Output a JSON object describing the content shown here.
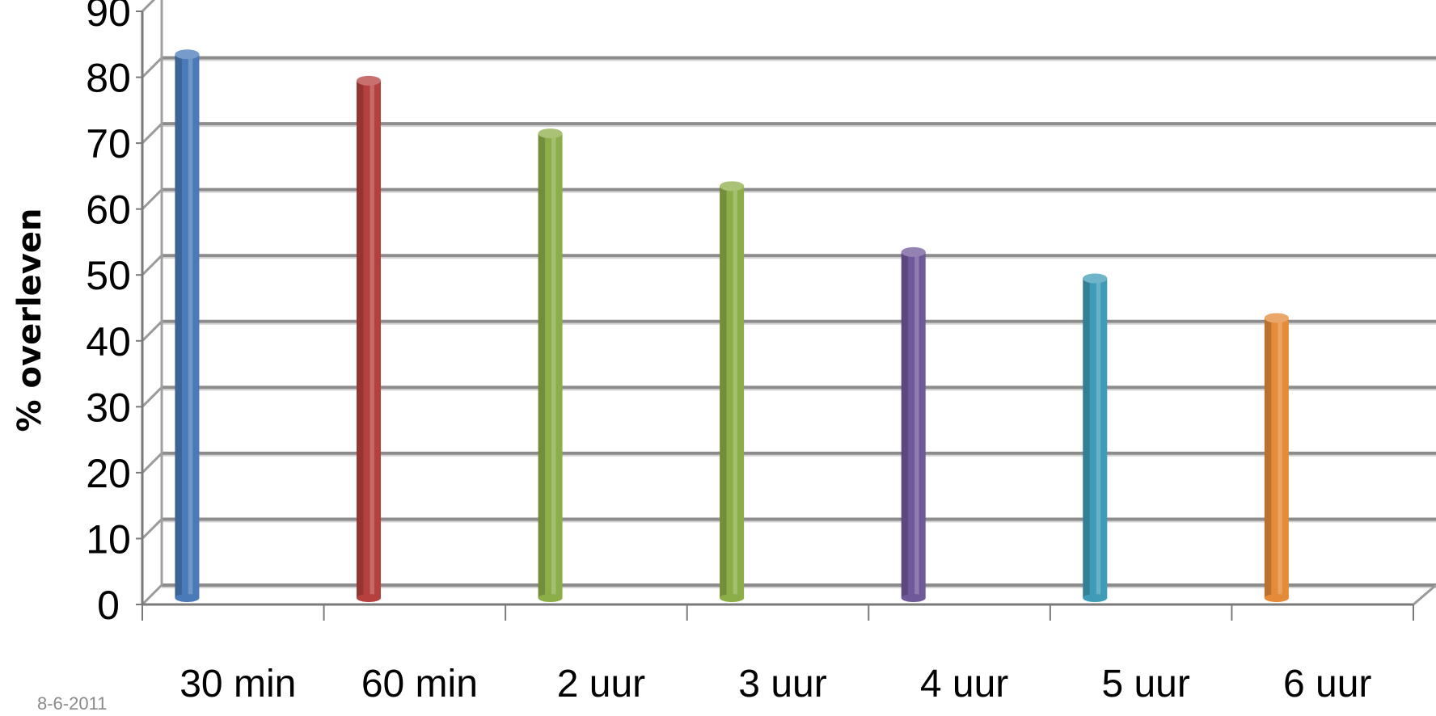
{
  "chart_data": {
    "type": "bar",
    "categories": [
      "30 min",
      "60 min",
      "2 uur",
      "3 uur",
      "4 uur",
      "5 uur",
      "6 uur"
    ],
    "values": [
      82,
      78,
      70,
      62,
      52,
      48,
      42
    ],
    "colors": [
      "#4a7ab8",
      "#b5413e",
      "#8cae48",
      "#8cae48",
      "#70599a",
      "#3e9cb8",
      "#e48a38"
    ],
    "title": "",
    "xlabel": "",
    "ylabel": "%     overleven",
    "ylim": [
      0,
      90
    ],
    "ytick_step": 10,
    "grid": true,
    "style": "3d-cylinder"
  },
  "footer": {
    "date": "8-6-2011"
  }
}
